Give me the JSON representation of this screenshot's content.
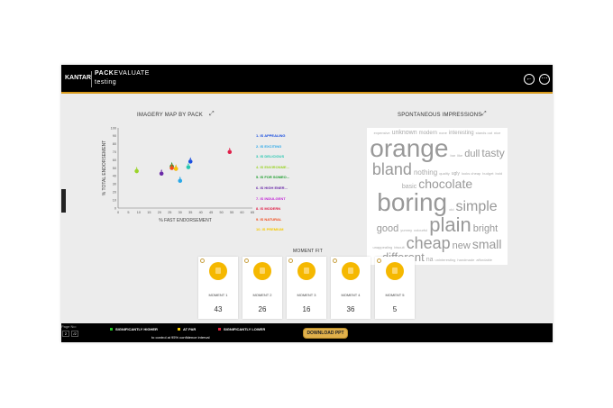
{
  "header": {
    "logo": "KANTAR",
    "product_bold": "PACK",
    "product_rest": "EVALUATE",
    "subtitle": "testing",
    "back_icon": "arrow-left-circle-icon",
    "more_icon": "more-circle-icon"
  },
  "imagery_map": {
    "title": "IMAGERY MAP BY PACK",
    "expand_icon": "expand-icon"
  },
  "chart_data": {
    "type": "scatter",
    "xlabel": "% FAST ENDORSEMENT",
    "ylabel": "% TOTAL ENDORSEMENT",
    "xlim": [
      0,
      65
    ],
    "ylim": [
      0,
      100
    ],
    "xticks": [
      0,
      5,
      10,
      15,
      20,
      25,
      30,
      35,
      40,
      45,
      50,
      55,
      60,
      65
    ],
    "yticks": [
      0,
      10,
      20,
      30,
      40,
      50,
      60,
      70,
      80,
      90,
      100
    ],
    "grid": false,
    "legend": "right",
    "series": [
      {
        "name": "1. IS APPEALING",
        "color": "#1a4fe0",
        "x": 35,
        "y": 58
      },
      {
        "name": "2. IS EXCITING",
        "color": "#2aa8e8",
        "x": 30,
        "y": 34
      },
      {
        "name": "3. IS DELICIOUS",
        "color": "#27c7b0",
        "x": 34,
        "y": 51
      },
      {
        "name": "4. IS ENVIRONME...",
        "color": "#9bd42a",
        "x": 9,
        "y": 46
      },
      {
        "name": "5. IS FOR SOMEO...",
        "color": "#1e9e2e",
        "x": 26,
        "y": 52
      },
      {
        "name": "6. IS HIGH ENER...",
        "color": "#6a2aa8",
        "x": 21,
        "y": 43
      },
      {
        "name": "7. IS INDULGENT",
        "color": "#c42ad8",
        "x": 28,
        "y": 49
      },
      {
        "name": "8. IS MODERN",
        "color": "#e0204a",
        "x": 54,
        "y": 70
      },
      {
        "name": "9. IS NATURAL",
        "color": "#f04a1a",
        "x": 26,
        "y": 50
      },
      {
        "name": "10. IS PREMIUM",
        "color": "#f5c800",
        "x": 28,
        "y": 49
      }
    ]
  },
  "impressions": {
    "title": "SPONTANEOUS IMPRESSIONS",
    "words": [
      "expensive",
      "unknown",
      "modern",
      "none",
      "interesting",
      "stands out",
      "nice",
      "orange",
      "bar",
      "like",
      "dull",
      "tasty",
      "bland",
      "nothing",
      "quality",
      "ugly",
      "looks cheap",
      "budget",
      "bold",
      "basic",
      "chocolate",
      "boring",
      "old",
      "simple",
      "good",
      "yummy",
      "colourful",
      "plain",
      "bright",
      "unappealing",
      "biscuit",
      "cheap",
      "new",
      "small",
      "different",
      "na",
      "uninteresting",
      "handmade",
      "affordable"
    ]
  },
  "moment_fit": {
    "title": "MOMENT FIT",
    "cards": [
      {
        "label": "MOMENT 1",
        "value": "43"
      },
      {
        "label": "MOMENT 2",
        "value": "26"
      },
      {
        "label": "MOMENT 3",
        "value": "16"
      },
      {
        "label": "MOMENT 4",
        "value": "36"
      },
      {
        "label": "MOMENT 5",
        "value": "5"
      }
    ]
  },
  "footer": {
    "page_label": "Page No:",
    "page": "2",
    "total": "/2",
    "legend": [
      {
        "label": "SIGNIFICANTLY HIGHER",
        "color": "#22c322"
      },
      {
        "label": "AT PAR",
        "color": "#f5c800"
      },
      {
        "label": "SIGNIFICANTLY LOWER",
        "color": "#e0203a"
      }
    ],
    "note": "to control at 95% confidence interval",
    "download": "DOWNLOAD PPT"
  }
}
